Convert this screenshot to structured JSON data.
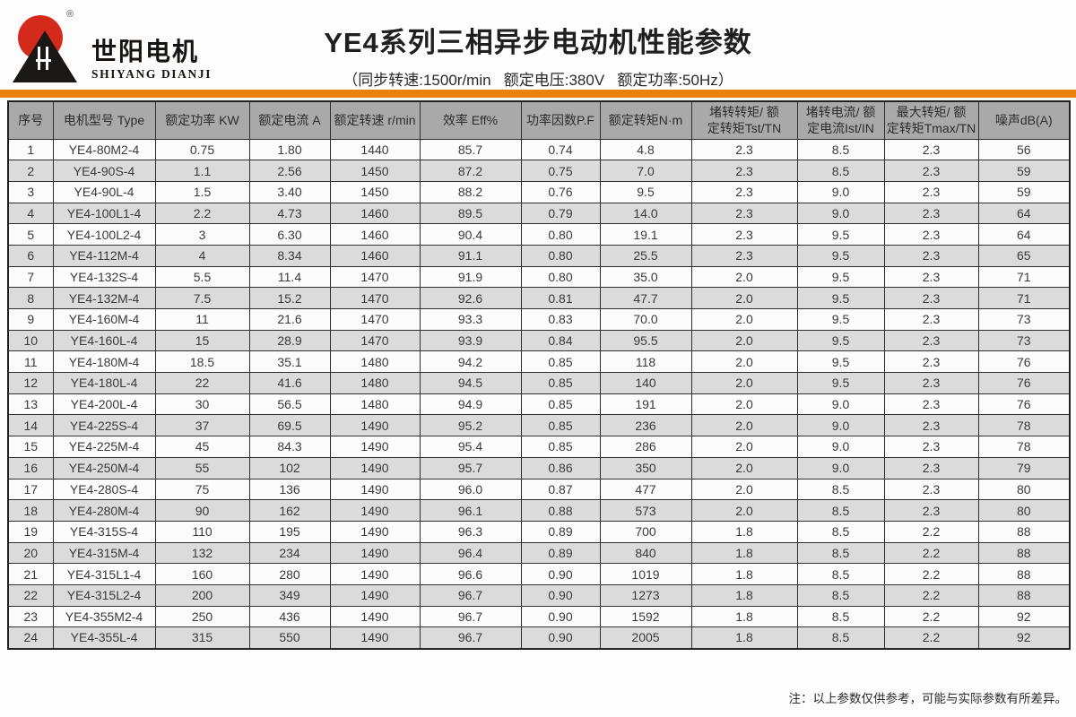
{
  "logo": {
    "brand_cn": "世阳电机",
    "brand_en": "SHIYANG DIANJI",
    "registered_mark": "®"
  },
  "header": {
    "title": "YE4系列三相异步电动机性能参数",
    "subtitle": "（同步转速:1500r/min   额定电压:380V   额定功率:50Hz）"
  },
  "colors": {
    "accent_orange": "#E8820D",
    "table_header_gray": "#A9A9A9",
    "stripe_gray": "#DBDBDB",
    "logo_red": "#D42A1C",
    "logo_black": "#1B1714"
  },
  "table": {
    "columns": [
      "序号",
      "电机型号 Type",
      "额定功率 KW",
      "额定电流 A",
      "额定转速 r/min",
      "效率 Eff%",
      "功率因数P.F",
      "额定转矩N·m",
      "堵转转矩/ 额\n定转矩Tst/TN",
      "堵转电流/ 额\n定电流Ist/IN",
      "最大转矩/ 额\n定转矩Tmax/TN",
      "噪声dB(A)"
    ],
    "rows": [
      [
        "1",
        "YE4-80M2-4",
        "0.75",
        "1.80",
        "1440",
        "85.7",
        "0.74",
        "4.8",
        "2.3",
        "8.5",
        "2.3",
        "56"
      ],
      [
        "2",
        "YE4-90S-4",
        "1.1",
        "2.56",
        "1450",
        "87.2",
        "0.75",
        "7.0",
        "2.3",
        "8.5",
        "2.3",
        "59"
      ],
      [
        "3",
        "YE4-90L-4",
        "1.5",
        "3.40",
        "1450",
        "88.2",
        "0.76",
        "9.5",
        "2.3",
        "9.0",
        "2.3",
        "59"
      ],
      [
        "4",
        "YE4-100L1-4",
        "2.2",
        "4.73",
        "1460",
        "89.5",
        "0.79",
        "14.0",
        "2.3",
        "9.0",
        "2.3",
        "64"
      ],
      [
        "5",
        "YE4-100L2-4",
        "3",
        "6.30",
        "1460",
        "90.4",
        "0.80",
        "19.1",
        "2.3",
        "9.5",
        "2.3",
        "64"
      ],
      [
        "6",
        "YE4-112M-4",
        "4",
        "8.34",
        "1460",
        "91.1",
        "0.80",
        "25.5",
        "2.3",
        "9.5",
        "2.3",
        "65"
      ],
      [
        "7",
        "YE4-132S-4",
        "5.5",
        "11.4",
        "1470",
        "91.9",
        "0.80",
        "35.0",
        "2.0",
        "9.5",
        "2.3",
        "71"
      ],
      [
        "8",
        "YE4-132M-4",
        "7.5",
        "15.2",
        "1470",
        "92.6",
        "0.81",
        "47.7",
        "2.0",
        "9.5",
        "2.3",
        "71"
      ],
      [
        "9",
        "YE4-160M-4",
        "11",
        "21.6",
        "1470",
        "93.3",
        "0.83",
        "70.0",
        "2.0",
        "9.5",
        "2.3",
        "73"
      ],
      [
        "10",
        "YE4-160L-4",
        "15",
        "28.9",
        "1470",
        "93.9",
        "0.84",
        "95.5",
        "2.0",
        "9.5",
        "2.3",
        "73"
      ],
      [
        "11",
        "YE4-180M-4",
        "18.5",
        "35.1",
        "1480",
        "94.2",
        "0.85",
        "118",
        "2.0",
        "9.5",
        "2.3",
        "76"
      ],
      [
        "12",
        "YE4-180L-4",
        "22",
        "41.6",
        "1480",
        "94.5",
        "0.85",
        "140",
        "2.0",
        "9.5",
        "2.3",
        "76"
      ],
      [
        "13",
        "YE4-200L-4",
        "30",
        "56.5",
        "1480",
        "94.9",
        "0.85",
        "191",
        "2.0",
        "9.0",
        "2.3",
        "76"
      ],
      [
        "14",
        "YE4-225S-4",
        "37",
        "69.5",
        "1490",
        "95.2",
        "0.85",
        "236",
        "2.0",
        "9.0",
        "2.3",
        "78"
      ],
      [
        "15",
        "YE4-225M-4",
        "45",
        "84.3",
        "1490",
        "95.4",
        "0.85",
        "286",
        "2.0",
        "9.0",
        "2.3",
        "78"
      ],
      [
        "16",
        "YE4-250M-4",
        "55",
        "102",
        "1490",
        "95.7",
        "0.86",
        "350",
        "2.0",
        "9.0",
        "2.3",
        "79"
      ],
      [
        "17",
        "YE4-280S-4",
        "75",
        "136",
        "1490",
        "96.0",
        "0.87",
        "477",
        "2.0",
        "8.5",
        "2.3",
        "80"
      ],
      [
        "18",
        "YE4-280M-4",
        "90",
        "162",
        "1490",
        "96.1",
        "0.88",
        "573",
        "2.0",
        "8.5",
        "2.3",
        "80"
      ],
      [
        "19",
        "YE4-315S-4",
        "110",
        "195",
        "1490",
        "96.3",
        "0.89",
        "700",
        "1.8",
        "8.5",
        "2.2",
        "88"
      ],
      [
        "20",
        "YE4-315M-4",
        "132",
        "234",
        "1490",
        "96.4",
        "0.89",
        "840",
        "1.8",
        "8.5",
        "2.2",
        "88"
      ],
      [
        "21",
        "YE4-315L1-4",
        "160",
        "280",
        "1490",
        "96.6",
        "0.90",
        "1019",
        "1.8",
        "8.5",
        "2.2",
        "88"
      ],
      [
        "22",
        "YE4-315L2-4",
        "200",
        "349",
        "1490",
        "96.7",
        "0.90",
        "1273",
        "1.8",
        "8.5",
        "2.2",
        "88"
      ],
      [
        "23",
        "YE4-355M2-4",
        "250",
        "436",
        "1490",
        "96.7",
        "0.90",
        "1592",
        "1.8",
        "8.5",
        "2.2",
        "92"
      ],
      [
        "24",
        "YE4-355L-4",
        "315",
        "550",
        "1490",
        "96.7",
        "0.90",
        "2005",
        "1.8",
        "8.5",
        "2.2",
        "92"
      ]
    ]
  },
  "footer": {
    "note": "注：以上参数仅供参考，可能与实际参数有所差异。"
  }
}
